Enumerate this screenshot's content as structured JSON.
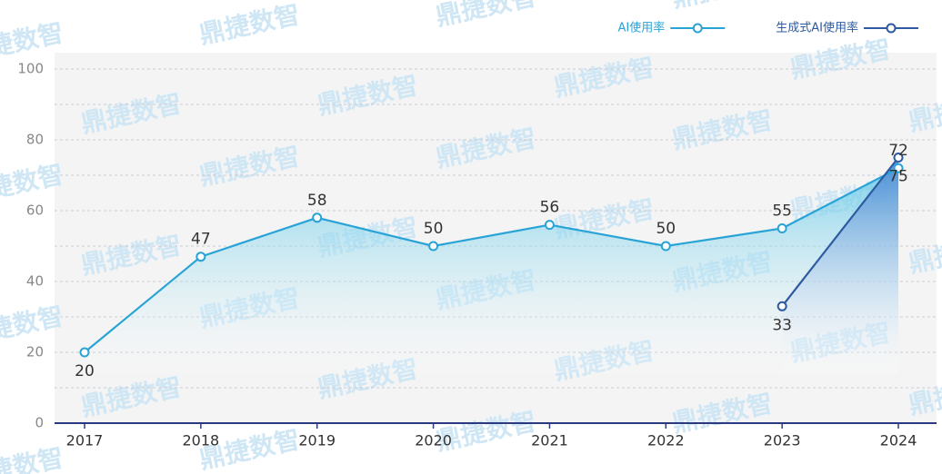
{
  "chart_data": {
    "type": "line",
    "watermark": "鼎捷数智",
    "categories": [
      "2017",
      "2018",
      "2019",
      "2020",
      "2021",
      "2022",
      "2023",
      "2024"
    ],
    "series": [
      {
        "name": "AI使用率",
        "color": "#29a3d6",
        "values": [
          20,
          47,
          58,
          50,
          56,
          50,
          55,
          72
        ]
      },
      {
        "name": "生成式AI使用率",
        "color": "#2d5aa0",
        "values": [
          null,
          null,
          null,
          null,
          null,
          null,
          33,
          75
        ]
      }
    ],
    "ylim": [
      0,
      100
    ],
    "yticks": [
      0,
      20,
      40,
      60,
      80,
      100
    ],
    "grid": true,
    "legend": "top-right"
  }
}
